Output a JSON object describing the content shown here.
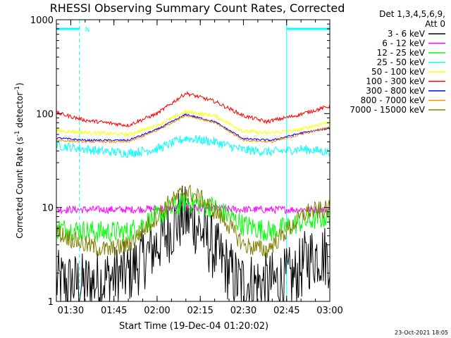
{
  "chart_data": {
    "type": "line",
    "title": "RHESSI Observing Summary Count Rates, Corrected",
    "xlabel": "Start Time (19-Dec-04 01:20:02)",
    "ylabel_main": "Corrected Count Rate (s",
    "ylabel_sup1": "-1",
    "ylabel_mid": " detector",
    "ylabel_sup2": "-1",
    "ylabel_end": ")",
    "yscale": "log",
    "ylim": [
      1,
      1000
    ],
    "xlim_minutes": [
      85,
      180
    ],
    "x_ticks": [
      {
        "minute": 90,
        "label": "01:30"
      },
      {
        "minute": 105,
        "label": "01:45"
      },
      {
        "minute": 120,
        "label": "02:00"
      },
      {
        "minute": 135,
        "label": "02:15"
      },
      {
        "minute": 150,
        "label": "02:30"
      },
      {
        "minute": 165,
        "label": "02:45"
      },
      {
        "minute": 180,
        "label": "03:00"
      }
    ],
    "y_ticks": [
      {
        "value": 1,
        "label": "1"
      },
      {
        "value": 10,
        "label": "10"
      },
      {
        "value": 100,
        "label": "100"
      },
      {
        "value": 1000,
        "label": "1000"
      }
    ],
    "legend": {
      "position": "top-right",
      "header_line1": "Det 1,3,4,5,6,9,",
      "header_line2": "Att 0"
    },
    "series": [
      {
        "name": "3 - 6 keV",
        "color": "#000000",
        "noise": 0.35,
        "keys": [
          [
            85,
            1.6
          ],
          [
            95,
            1.5
          ],
          [
            110,
            2.0
          ],
          [
            118,
            3.5
          ],
          [
            125,
            6.0
          ],
          [
            129,
            8.0
          ],
          [
            133,
            7.0
          ],
          [
            140,
            3.5
          ],
          [
            148,
            1.6
          ],
          [
            158,
            1.5
          ],
          [
            168,
            1.8
          ],
          [
            172,
            2.8
          ],
          [
            176,
            3.2
          ],
          [
            180,
            3.0
          ]
        ]
      },
      {
        "name": "6 - 12 keV",
        "color": "#ff00ff",
        "noise": 0.04,
        "keys": [
          [
            85,
            9.5
          ],
          [
            110,
            9.5
          ],
          [
            130,
            10.0
          ],
          [
            150,
            9.5
          ],
          [
            180,
            9.5
          ]
        ]
      },
      {
        "name": "12 - 25 keV",
        "color": "#00ff00",
        "noise": 0.12,
        "keys": [
          [
            85,
            6.0
          ],
          [
            100,
            5.5
          ],
          [
            110,
            5.5
          ],
          [
            120,
            8.0
          ],
          [
            130,
            11.5
          ],
          [
            140,
            10.0
          ],
          [
            150,
            6.5
          ],
          [
            160,
            5.5
          ],
          [
            170,
            7.0
          ],
          [
            180,
            8.0
          ]
        ]
      },
      {
        "name": "25 - 50 keV",
        "color": "#00ffff",
        "noise": 0.05,
        "keys": [
          [
            85,
            46
          ],
          [
            100,
            40
          ],
          [
            110,
            38
          ],
          [
            120,
            42
          ],
          [
            130,
            55
          ],
          [
            140,
            50
          ],
          [
            150,
            41
          ],
          [
            160,
            39
          ],
          [
            170,
            42
          ],
          [
            180,
            39
          ]
        ]
      },
      {
        "name": "50 - 100 keV",
        "color": "#ffff00",
        "noise": 0.02,
        "keys": [
          [
            85,
            66
          ],
          [
            95,
            63
          ],
          [
            110,
            60
          ],
          [
            120,
            75
          ],
          [
            130,
            105
          ],
          [
            140,
            95
          ],
          [
            150,
            65
          ],
          [
            158,
            62
          ],
          [
            168,
            66
          ],
          [
            180,
            82
          ]
        ]
      },
      {
        "name": "100 - 300 keV",
        "color": "#ff0000",
        "noise": 0.02,
        "keys": [
          [
            85,
            102
          ],
          [
            95,
            85
          ],
          [
            110,
            75
          ],
          [
            120,
            100
          ],
          [
            130,
            165
          ],
          [
            140,
            135
          ],
          [
            150,
            95
          ],
          [
            158,
            82
          ],
          [
            168,
            95
          ],
          [
            180,
            120
          ]
        ]
      },
      {
        "name": "300 - 800 keV",
        "color": "#0000ff",
        "noise": 0.01,
        "keys": [
          [
            85,
            55
          ],
          [
            95,
            52
          ],
          [
            110,
            52
          ],
          [
            120,
            68
          ],
          [
            130,
            98
          ],
          [
            140,
            82
          ],
          [
            150,
            54
          ],
          [
            160,
            52
          ],
          [
            170,
            62
          ],
          [
            180,
            70
          ]
        ]
      },
      {
        "name": "800 - 7000 keV",
        "color": "#ff8c00",
        "noise": 0.01,
        "keys": [
          [
            85,
            52
          ],
          [
            95,
            50
          ],
          [
            110,
            50
          ],
          [
            120,
            66
          ],
          [
            130,
            96
          ],
          [
            140,
            80
          ],
          [
            150,
            52
          ],
          [
            160,
            50
          ],
          [
            170,
            60
          ],
          [
            180,
            72
          ]
        ]
      },
      {
        "name": "7000 - 15000 keV",
        "color": "#808000",
        "noise": 0.1,
        "keys": [
          [
            85,
            5.5
          ],
          [
            95,
            4.0
          ],
          [
            103,
            3.5
          ],
          [
            110,
            4.0
          ],
          [
            118,
            7.0
          ],
          [
            124,
            11.0
          ],
          [
            130,
            15.0
          ],
          [
            136,
            12.0
          ],
          [
            144,
            7.0
          ],
          [
            150,
            4.0
          ],
          [
            158,
            3.5
          ],
          [
            166,
            6.0
          ],
          [
            172,
            9.0
          ],
          [
            180,
            9.5
          ]
        ]
      }
    ],
    "annotations": {
      "attenuator_label": "N",
      "night_intervals": [
        [
          85,
          93
        ],
        [
          165,
          180
        ]
      ],
      "dashed_markers": [
        93,
        180
      ],
      "solid_markers": [
        165
      ]
    }
  },
  "footer": {
    "date": "23-Oct-2021 18:05"
  }
}
